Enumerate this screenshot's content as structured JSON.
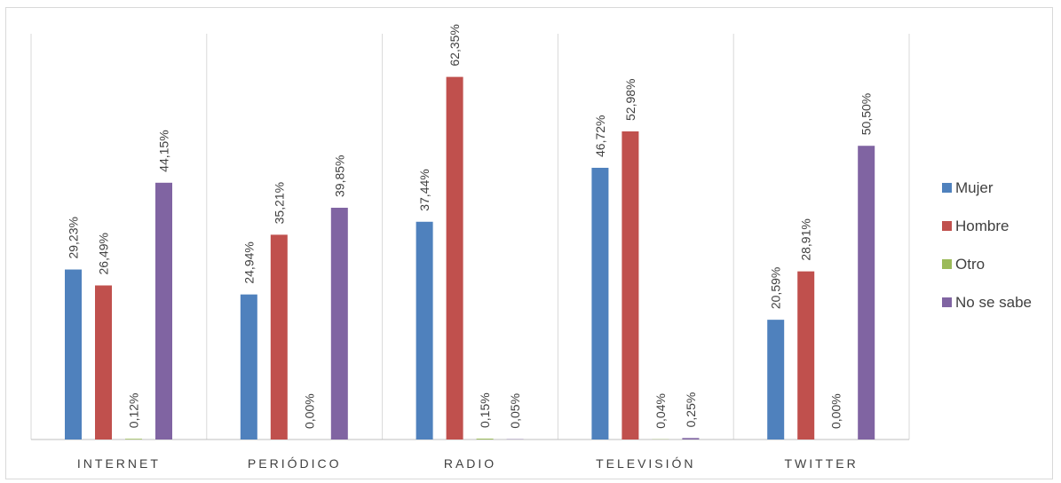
{
  "chart_data": {
    "type": "bar",
    "categories": [
      "INTERNET",
      "PERIÓDICO",
      "RADIO",
      "TELEVISIÓN",
      "TWITTER"
    ],
    "series": [
      {
        "name": "Mujer",
        "color": "#4f81bd",
        "values": [
          29.23,
          24.94,
          37.44,
          46.72,
          20.59
        ],
        "labels": [
          "29,23%",
          "24,94%",
          "37,44%",
          "46,72%",
          "20,59%"
        ]
      },
      {
        "name": "Hombre",
        "color": "#c0504d",
        "values": [
          26.49,
          35.21,
          62.35,
          52.98,
          28.91
        ],
        "labels": [
          "26,49%",
          "35,21%",
          "62,35%",
          "52,98%",
          "28,91%"
        ]
      },
      {
        "name": "Otro",
        "color": "#9bbb59",
        "values": [
          0.12,
          0.0,
          0.15,
          0.04,
          0.0
        ],
        "labels": [
          "0,12%",
          "0,00%",
          "0,15%",
          "0,04%",
          "0,00%"
        ]
      },
      {
        "name": "No se sabe",
        "color": "#8064a2",
        "values": [
          44.15,
          39.85,
          0.05,
          0.25,
          50.5
        ],
        "labels": [
          "44,15%",
          "39,85%",
          "0,05%",
          "0,25%",
          "50,50%"
        ]
      }
    ],
    "ylim": [
      0,
      70
    ],
    "legend_position": "right",
    "grid": false
  }
}
